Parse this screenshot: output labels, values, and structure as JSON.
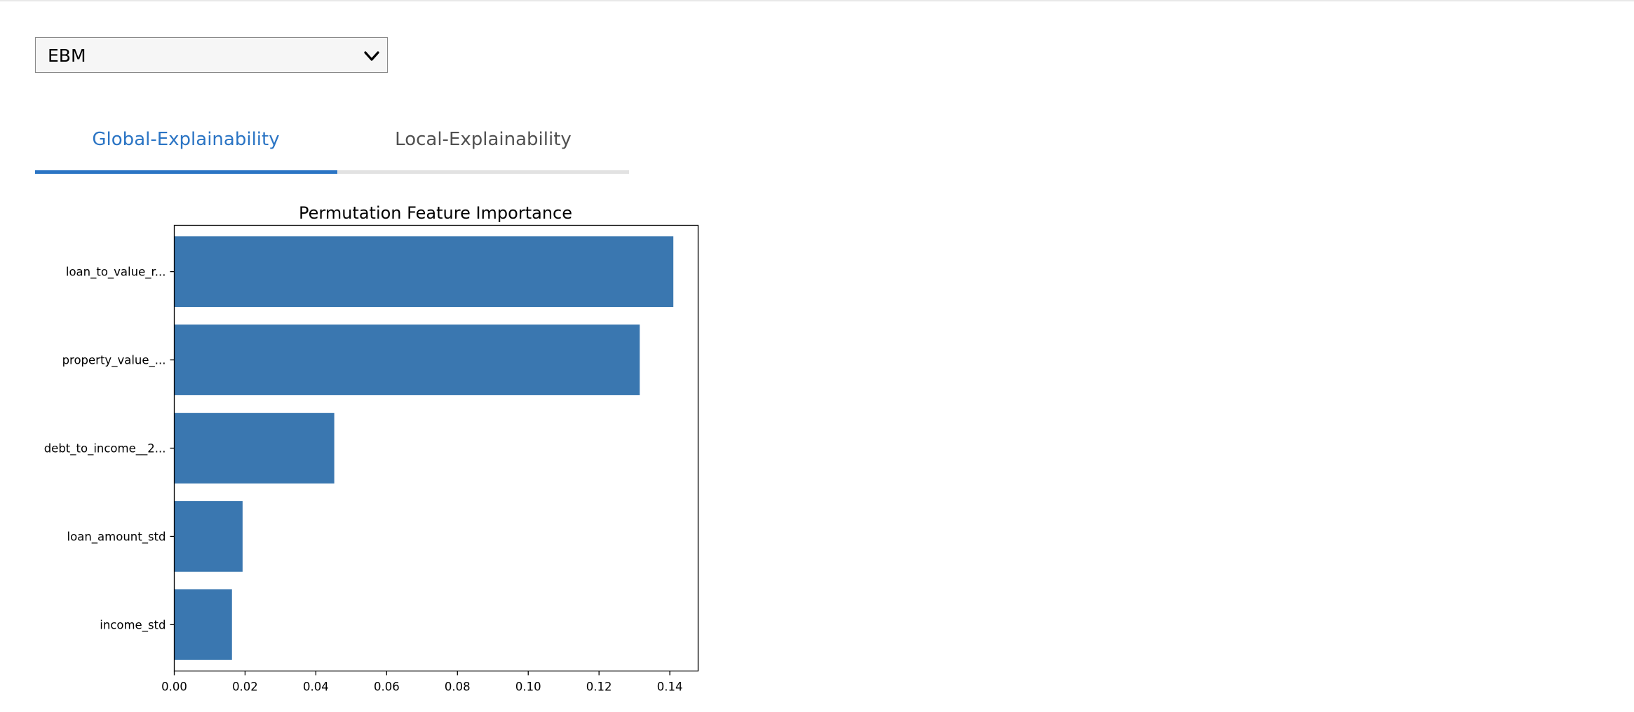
{
  "model_select": {
    "value": "EBM"
  },
  "tabs": [
    {
      "label": "Global-Explainability",
      "active": true
    },
    {
      "label": "Local-Explainability",
      "active": false
    }
  ],
  "colors": {
    "accent": "#2a74c4",
    "bar": "#3a77b0"
  },
  "chart_data": {
    "type": "bar",
    "orientation": "horizontal",
    "title": "Permutation Feature Importance",
    "xlabel": "",
    "ylabel": "",
    "categories": [
      "loan_to_value_r...",
      "property_value_...",
      "debt_to_income__2...",
      "loan_amount_std",
      "income_std"
    ],
    "values": [
      0.141,
      0.1315,
      0.0452,
      0.0193,
      0.0163
    ],
    "xlim": [
      0,
      0.148
    ],
    "xticks": [
      "0.00",
      "0.02",
      "0.04",
      "0.06",
      "0.08",
      "0.10",
      "0.12",
      "0.14"
    ],
    "grid": false,
    "legend": "none"
  }
}
